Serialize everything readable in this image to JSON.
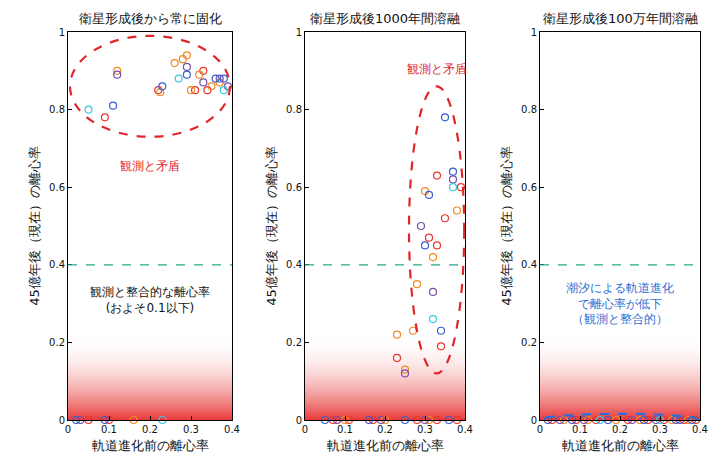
{
  "chart_data": [
    {
      "type": "scatter",
      "title": "衛星形成後から常に固化",
      "x_label": "軌道進化前の離心率",
      "y_label": "45億年後（現在）の離心率",
      "xlim": [
        0,
        0.4
      ],
      "ylim": [
        0,
        1
      ],
      "xticks": [
        0,
        0.1,
        0.2,
        0.3,
        0.4
      ],
      "yticks": [
        0,
        0.2,
        0.4,
        0.6,
        0.8,
        1
      ],
      "marker": "circle-open",
      "reference_line": {
        "value": 0.4,
        "color": "#2aa88a",
        "line_style": "dash"
      },
      "band": {
        "range": [
          0,
          0.22
        ],
        "color": "#e83a3a"
      },
      "highlight": {
        "x": [
          0.005,
          0.395
        ],
        "y": [
          0.73,
          0.99
        ],
        "color": "#e0262a",
        "line_style": "dash"
      },
      "annotations": [
        {
          "text": "観測と矛盾",
          "x": 0.2,
          "y": 0.655,
          "color": "#e0262a"
        },
        {
          "text": "観測と整合的な離心率\n(およそ0.1以下)",
          "x": 0.2,
          "y": 0.31,
          "color": "#111111"
        }
      ],
      "series": [
        {
          "color": "#e8372c",
          "x": [
            0.09,
            0.22,
            0.31,
            0.33,
            0.34,
            0.05,
            0.1
          ],
          "values": [
            0.78,
            0.85,
            0.85,
            0.9,
            0.85,
            0,
            0
          ]
        },
        {
          "color": "#f08a24",
          "x": [
            0.12,
            0.225,
            0.26,
            0.28,
            0.29,
            0.3,
            0.32,
            0.35,
            0.37,
            0.16
          ],
          "values": [
            0.9,
            0.845,
            0.92,
            0.93,
            0.94,
            0.85,
            0.89,
            0.86,
            0.87,
            0
          ]
        },
        {
          "color": "#7a4fa8",
          "x": [
            0.12,
            0.29,
            0.33,
            0.37,
            0.39,
            0.03
          ],
          "values": [
            0.89,
            0.91,
            0.87,
            0.88,
            0.86,
            0
          ]
        },
        {
          "color": "#3a5fcd",
          "x": [
            0.11,
            0.23,
            0.29,
            0.36,
            0.38,
            0.02,
            0.09
          ],
          "values": [
            0.81,
            0.86,
            0.89,
            0.88,
            0.88,
            0,
            0
          ]
        },
        {
          "color": "#3cc6e0",
          "x": [
            0.05,
            0.27,
            0.38,
            0.23
          ],
          "values": [
            0.8,
            0.88,
            0.85,
            0
          ]
        }
      ]
    },
    {
      "type": "scatter",
      "title": "衛星形成後1000年間溶融",
      "x_label": "軌道進化前の離心率",
      "y_label": "45億年後（現在）の離心率",
      "xlim": [
        0,
        0.4
      ],
      "ylim": [
        0,
        1
      ],
      "xticks": [
        0,
        0.1,
        0.2,
        0.3,
        0.4
      ],
      "yticks": [
        0,
        0.2,
        0.4,
        0.6,
        0.8,
        1
      ],
      "marker": "circle-open",
      "reference_line": {
        "value": 0.4,
        "color": "#2aa88a",
        "line_style": "dash"
      },
      "band": {
        "range": [
          0,
          0.22
        ],
        "color": "#e83a3a"
      },
      "highlight": {
        "x": [
          0.26,
          0.398
        ],
        "y": [
          0.12,
          0.86
        ],
        "color": "#e0262a",
        "line_style": "dash"
      },
      "annotations": [
        {
          "text": "観測と矛盾",
          "x": 0.33,
          "y": 0.905,
          "color": "#e0262a"
        }
      ],
      "series": [
        {
          "color": "#e8372c",
          "x": [
            0.23,
            0.31,
            0.33,
            0.33,
            0.34,
            0.35,
            0.39,
            0.07,
            0.11,
            0.17,
            0.28,
            0.33,
            0.38
          ],
          "values": [
            0.16,
            0.47,
            0.63,
            0.45,
            0.19,
            0.52,
            0.6,
            0,
            0,
            0,
            0,
            0,
            0
          ]
        },
        {
          "color": "#f08a24",
          "x": [
            0.23,
            0.25,
            0.27,
            0.28,
            0.3,
            0.32,
            0.38,
            0.1,
            0.2,
            0.31
          ],
          "values": [
            0.22,
            0.13,
            0.23,
            0.35,
            0.59,
            0.42,
            0.54,
            0,
            0,
            0
          ]
        },
        {
          "color": "#7a4fa8",
          "x": [
            0.25,
            0.29,
            0.32,
            0.37,
            0.08,
            0.19,
            0.3
          ],
          "values": [
            0.12,
            0.5,
            0.33,
            0.62,
            0,
            0,
            0
          ]
        },
        {
          "color": "#3a5fcd",
          "x": [
            0.3,
            0.31,
            0.34,
            0.35,
            0.37,
            0.05,
            0.16,
            0.25,
            0.36
          ],
          "values": [
            0.45,
            0.58,
            0.23,
            0.78,
            0.64,
            0,
            0,
            0,
            0
          ]
        },
        {
          "color": "#3cc6e0",
          "x": [
            0.32,
            0.37
          ],
          "values": [
            0.26,
            0.6
          ]
        }
      ]
    },
    {
      "type": "scatter",
      "title": "衛星形成後100万年間溶融",
      "x_label": "軌道進化前の離心率",
      "y_label": "45億年後（現在）の離心率",
      "xlim": [
        0,
        0.4
      ],
      "ylim": [
        0,
        1
      ],
      "xticks": [
        0,
        0.1,
        0.2,
        0.3,
        0.4
      ],
      "yticks": [
        0,
        0.2,
        0.4,
        0.6,
        0.8,
        1
      ],
      "marker": "circle-open",
      "reference_line": {
        "value": 0.4,
        "color": "#2aa88a",
        "line_style": "dash"
      },
      "band": {
        "range": [
          0,
          0.22
        ],
        "color": "#e83a3a"
      },
      "highlight": {
        "x": [
          0.005,
          0.395
        ],
        "y": [
          -0.014,
          0.016
        ],
        "color": "#2a6fd6",
        "line_style": "dash"
      },
      "annotations": [
        {
          "text": "潮汐による軌道進化\nで離心率が低下\n（観測と整合的）",
          "x": 0.2,
          "y": 0.3,
          "color": "#2a6fd6"
        }
      ],
      "series": [
        {
          "color": "#e8372c",
          "x": [
            0.03,
            0.09,
            0.14,
            0.22,
            0.27,
            0.31,
            0.36,
            0.39
          ],
          "values": [
            0,
            0,
            0,
            0,
            0,
            0,
            0,
            0
          ]
        },
        {
          "color": "#f08a24",
          "x": [
            0.06,
            0.12,
            0.19,
            0.25,
            0.33,
            0.37
          ],
          "values": [
            0,
            0,
            0,
            0,
            0,
            0
          ]
        },
        {
          "color": "#7a4fa8",
          "x": [
            0.05,
            0.11,
            0.23,
            0.29,
            0.35
          ],
          "values": [
            0,
            0,
            0,
            0,
            0
          ]
        },
        {
          "color": "#3a5fcd",
          "x": [
            0.02,
            0.08,
            0.17,
            0.26,
            0.34,
            0.38
          ],
          "values": [
            0,
            0,
            0,
            0,
            0,
            0
          ]
        },
        {
          "color": "#3cc6e0",
          "x": [
            0.15,
            0.3
          ],
          "values": [
            0,
            0
          ]
        }
      ]
    }
  ]
}
